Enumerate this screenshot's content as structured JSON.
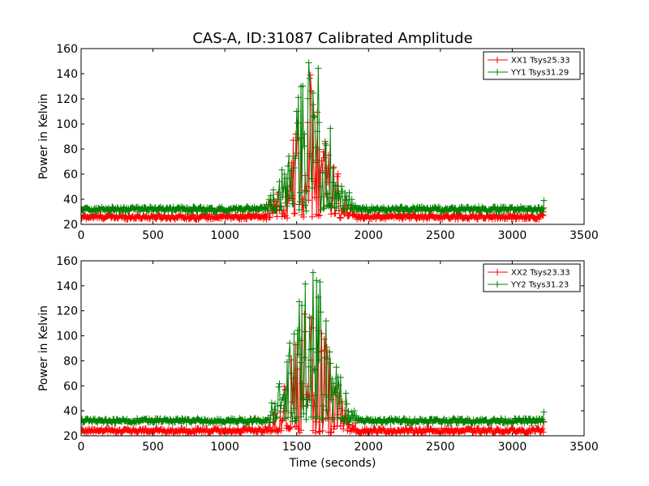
{
  "title": "CAS-A, ID:31087 Calibrated Amplitude",
  "colors": {
    "xx": "#ff0000",
    "yy": "#008000"
  },
  "chart_data": [
    {
      "type": "line",
      "title": "CAS-A, ID:31087 Calibrated Amplitude",
      "xlabel": "",
      "ylabel": "Power in Kelvin",
      "xlim": [
        0,
        3500
      ],
      "ylim": [
        20,
        160
      ],
      "xticks": [
        0,
        500,
        1000,
        1500,
        2000,
        2500,
        3000,
        3500
      ],
      "yticks": [
        20,
        40,
        60,
        80,
        100,
        120,
        140,
        160
      ],
      "grid": false,
      "legend": "top-right",
      "marker": "+",
      "x_range_data": [
        0,
        3220
      ],
      "series": [
        {
          "name": "XX1 Tsys25.33",
          "color": "#ff0000",
          "baseline": 26,
          "noise": 2.0,
          "peak_x": 1600,
          "peak_width": 130,
          "peak_height": 115
        },
        {
          "name": "YY1 Tsys31.29",
          "color": "#008000",
          "baseline": 32,
          "noise": 2.0,
          "peak_x": 1600,
          "peak_width": 130,
          "peak_height": 126
        }
      ]
    },
    {
      "type": "line",
      "title": "",
      "xlabel": "Time (seconds)",
      "ylabel": "Power in Kelvin",
      "xlim": [
        0,
        3500
      ],
      "ylim": [
        20,
        160
      ],
      "xticks": [
        0,
        500,
        1000,
        1500,
        2000,
        2500,
        3000,
        3500
      ],
      "yticks": [
        20,
        40,
        60,
        80,
        100,
        120,
        140,
        160
      ],
      "grid": false,
      "legend": "top-right",
      "marker": "+",
      "x_range_data": [
        0,
        3220
      ],
      "series": [
        {
          "name": "XX2 Tsys23.33",
          "color": "#ff0000",
          "baseline": 24,
          "noise": 2.0,
          "peak_x": 1600,
          "peak_width": 130,
          "peak_height": 105
        },
        {
          "name": "YY2 Tsys31.23",
          "color": "#008000",
          "baseline": 32,
          "noise": 2.0,
          "peak_x": 1600,
          "peak_width": 130,
          "peak_height": 126
        }
      ]
    }
  ]
}
